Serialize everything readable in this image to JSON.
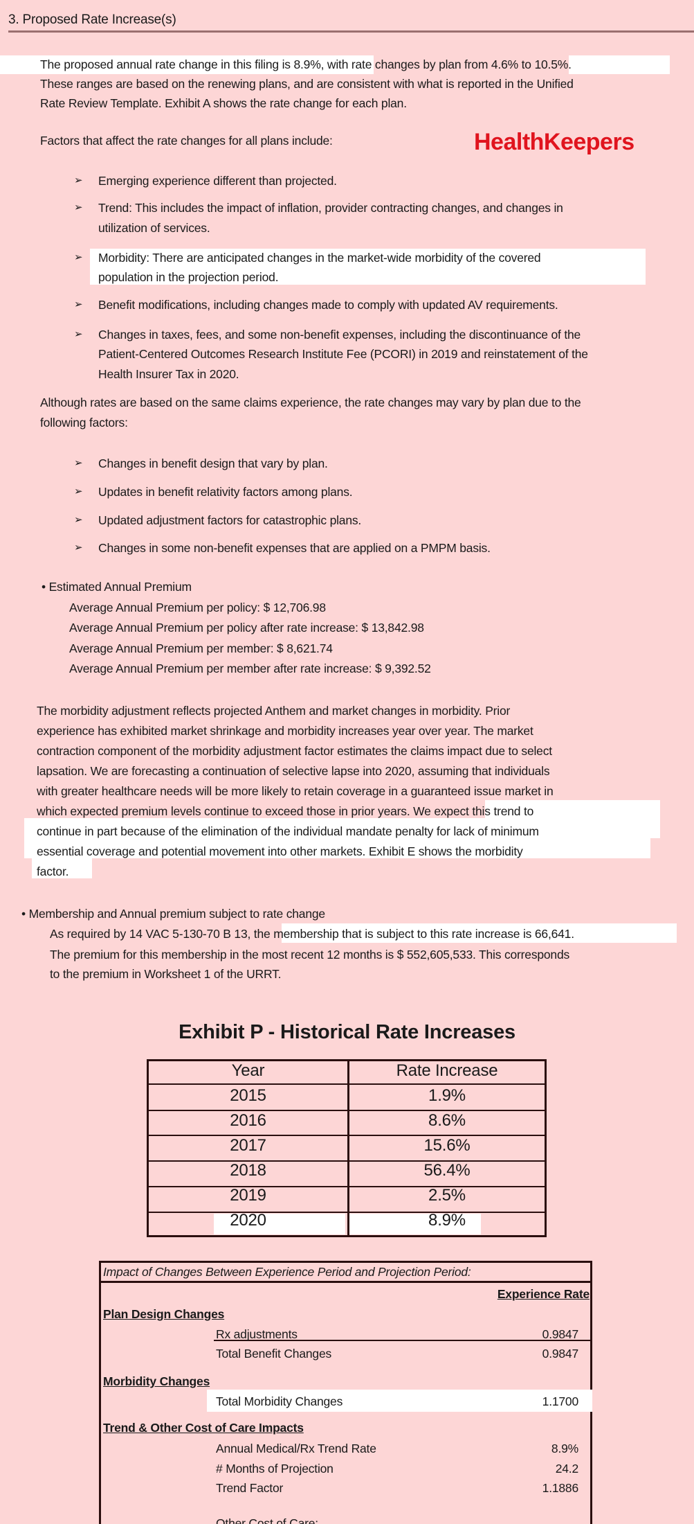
{
  "section_title": "3. Proposed Rate Increase(s)",
  "intro": [
    "The proposed annual rate change in this filing is 8.9%, with rate changes by plan from 4.6% to 10.5%.",
    "These ranges are based on the renewing plans, and are consistent with what is reported in the Unified",
    "Rate Review Template.   Exhibit A shows the rate change for each plan."
  ],
  "factors_heading": "Factors that affect the rate changes for all plans include:",
  "logo": "HealthKeepers",
  "factors": [
    [
      "Emerging experience different than projected."
    ],
    [
      "Trend: This includes the impact of inflation, provider contracting changes, and changes in",
      "utilization of services."
    ],
    [
      "Morbidity: There are anticipated changes in the market-wide morbidity of the covered",
      "population in the projection period."
    ],
    [
      "Benefit modifications, including changes made to comply with updated AV requirements."
    ],
    [
      "Changes in taxes, fees, and some non-benefit expenses, including the discontinuance of the",
      "Patient-Centered Outcomes Research Institute Fee (PCORI) in 2019 and reinstatement of the",
      "Health Insurer Tax in 2020."
    ]
  ],
  "vary_text": [
    "Although rates are based on the same claims experience, the rate changes may vary by plan due to the",
    "following factors:"
  ],
  "vary_factors": [
    "Changes in benefit design that vary by plan.",
    "Updates in benefit relativity factors among plans.",
    "Updated adjustment factors for catastrophic plans.",
    "Changes in some non-benefit expenses that are applied on a PMPM basis."
  ],
  "premium": {
    "heading": "• Estimated Annual Premium",
    "lines": [
      "Average Annual Premium per policy: $ 12,706.98",
      "Average Annual Premium per policy after rate increase: $ 13,842.98",
      "Average Annual Premium per member: $ 8,621.74",
      "Average Annual Premium per member after rate increase: $ 9,392.52"
    ]
  },
  "morbidity_para": [
    "The morbidity adjustment reflects projected Anthem and market changes in morbidity.  Prior",
    "experience has exhibited market shrinkage and morbidity increases year over year.  The market",
    "contraction component of the morbidity adjustment factor estimates the claims impact due to select",
    "lapsation.  We are forecasting a continuation of selective lapse into 2020, assuming that individuals",
    "with greater healthcare needs will be more likely to retain coverage in a guaranteed issue market in",
    "which expected premium levels continue to exceed those in prior years.  We expect this trend to",
    "continue in part because of the elimination of the individual mandate penalty for lack of minimum",
    "essential coverage and potential movement into other markets.    Exhibit E shows the morbidity",
    "factor."
  ],
  "membership": {
    "heading": "• Membership and Annual premium subject to rate change",
    "lines": [
      "As required by 14 VAC 5-130-70 B 13, the membership that is subject to this rate increase is 66,641.",
      "The premium for this membership in the most recent 12 months is $ 552,605,533.  This corresponds",
      "to the premium in Worksheet 1 of the URRT."
    ]
  },
  "exhibit_p": {
    "title": "Exhibit P - Historical Rate Increases",
    "headers": [
      "Year",
      "Rate Increase"
    ],
    "rows": [
      [
        "2015",
        "1.9%"
      ],
      [
        "2016",
        "8.6%"
      ],
      [
        "2017",
        "15.6%"
      ],
      [
        "2018",
        "56.4%"
      ],
      [
        "2019",
        "2.5%"
      ],
      [
        "2020",
        "8.9%"
      ]
    ]
  },
  "impact": {
    "title": "Impact of Changes Between Experience Period and Projection Period:",
    "col": "Experience Rate",
    "plan_design": "Plan Design Changes",
    "rx": [
      "Rx adjustments",
      "0.9847"
    ],
    "total_benefit": [
      "Total Benefit Changes",
      "0.9847"
    ],
    "morbidity": "Morbidity Changes",
    "total_morbidity": [
      "Total Morbidity Changes",
      "1.1700"
    ],
    "trend": "Trend & Other Cost of Care Impacts",
    "trend_rate": [
      "Annual Medical/Rx Trend Rate",
      "8.9%"
    ],
    "months": [
      "# Months of Projection",
      "24.2"
    ],
    "trend_factor": [
      "Trend Factor",
      "1.1886"
    ],
    "other": "Other Cost of Care:"
  }
}
